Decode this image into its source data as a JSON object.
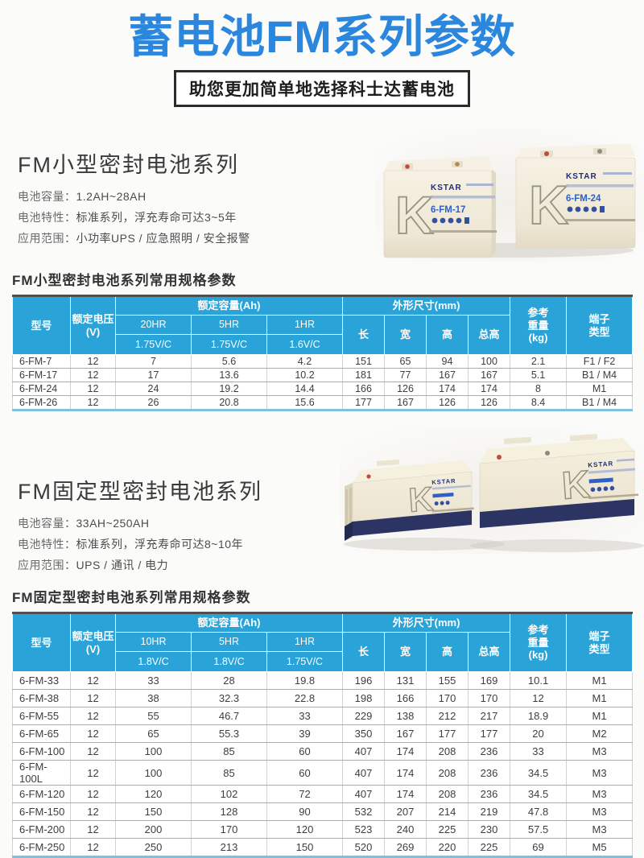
{
  "page": {
    "title": "蓄电池FM系列参数",
    "banner": "助您更加简单地选择科士达蓄电池",
    "brand": "KSTAR",
    "logo_letter": "K"
  },
  "colors": {
    "title_blue": "#2b87dd",
    "table_header_blue": "#29a3d8",
    "table_top_border": "#4f4f4f",
    "table_bottom_border": "#7cc2de",
    "battery_navy": "#2b3462",
    "battery_cream": "#efe8d8",
    "model_text_blue": "#2f60c4"
  },
  "sections": [
    {
      "heading": "FM小型密封电池系列",
      "specs": [
        {
          "label": "电池容量：",
          "value": "1.2AH~28AH"
        },
        {
          "label": "电池特性：",
          "value": "标准系列，浮充寿命可达3~5年"
        },
        {
          "label": "应用范围：",
          "value": "小功率UPS / 应急照明 / 安全报警"
        }
      ],
      "table_caption": "FM小型密封电池系列常用规格参数",
      "battery_models": [
        "6-FM-17",
        "6-FM-24"
      ],
      "table": {
        "headers": {
          "model": "型号",
          "voltage": "额定电压\n(V)",
          "capacity_group": "额定容量(Ah)",
          "rates": [
            "20HR",
            "5HR",
            "1HR"
          ],
          "cutoffs": [
            "1.75V/C",
            "1.75V/C",
            "1.6V/C"
          ],
          "dims_group": "外形尺寸(mm)",
          "dims": [
            "长",
            "宽",
            "高",
            "总高"
          ],
          "weight": "参考\n重量\n(kg)",
          "terminal": "端子\n类型"
        },
        "rows": [
          [
            "6-FM-7",
            "12",
            "7",
            "5.6",
            "4.2",
            "151",
            "65",
            "94",
            "100",
            "2.1",
            "F1 / F2"
          ],
          [
            "6-FM-17",
            "12",
            "17",
            "13.6",
            "10.2",
            "181",
            "77",
            "167",
            "167",
            "5.1",
            "B1 / M4"
          ],
          [
            "6-FM-24",
            "12",
            "24",
            "19.2",
            "14.4",
            "166",
            "126",
            "174",
            "174",
            "8",
            "M1"
          ],
          [
            "6-FM-26",
            "12",
            "26",
            "20.8",
            "15.6",
            "177",
            "167",
            "126",
            "126",
            "8.4",
            "B1 / M4"
          ]
        ]
      }
    },
    {
      "heading": "FM固定型密封电池系列",
      "specs": [
        {
          "label": "电池容量：",
          "value": "33AH~250AH"
        },
        {
          "label": "电池特性：",
          "value": "标准系列，浮充寿命可达8~10年"
        },
        {
          "label": "应用范围：",
          "value": "UPS / 通讯 / 电力"
        }
      ],
      "table_caption": "FM固定型密封电池系列常用规格参数",
      "battery_models": [],
      "table": {
        "headers": {
          "model": "型号",
          "voltage": "额定电压\n(V)",
          "capacity_group": "额定容量(Ah)",
          "rates": [
            "10HR",
            "5HR",
            "1HR"
          ],
          "cutoffs": [
            "1.8V/C",
            "1.8V/C",
            "1.75V/C"
          ],
          "dims_group": "外形尺寸(mm)",
          "dims": [
            "长",
            "宽",
            "高",
            "总高"
          ],
          "weight": "参考\n重量\n(kg)",
          "terminal": "端子\n类型"
        },
        "rows": [
          [
            "6-FM-33",
            "12",
            "33",
            "28",
            "19.8",
            "196",
            "131",
            "155",
            "169",
            "10.1",
            "M1"
          ],
          [
            "6-FM-38",
            "12",
            "38",
            "32.3",
            "22.8",
            "198",
            "166",
            "170",
            "170",
            "12",
            "M1"
          ],
          [
            "6-FM-55",
            "12",
            "55",
            "46.7",
            "33",
            "229",
            "138",
            "212",
            "217",
            "18.9",
            "M1"
          ],
          [
            "6-FM-65",
            "12",
            "65",
            "55.3",
            "39",
            "350",
            "167",
            "177",
            "177",
            "20",
            "M2"
          ],
          [
            "6-FM-100",
            "12",
            "100",
            "85",
            "60",
            "407",
            "174",
            "208",
            "236",
            "33",
            "M3"
          ],
          [
            "6-FM-100L",
            "12",
            "100",
            "85",
            "60",
            "407",
            "174",
            "208",
            "236",
            "34.5",
            "M3"
          ],
          [
            "6-FM-120",
            "12",
            "120",
            "102",
            "72",
            "407",
            "174",
            "208",
            "236",
            "34.5",
            "M3"
          ],
          [
            "6-FM-150",
            "12",
            "150",
            "128",
            "90",
            "532",
            "207",
            "214",
            "219",
            "47.8",
            "M3"
          ],
          [
            "6-FM-200",
            "12",
            "200",
            "170",
            "120",
            "523",
            "240",
            "225",
            "230",
            "57.5",
            "M3"
          ],
          [
            "6-FM-250",
            "12",
            "250",
            "213",
            "150",
            "520",
            "269",
            "220",
            "225",
            "69",
            "M5"
          ]
        ]
      }
    }
  ]
}
